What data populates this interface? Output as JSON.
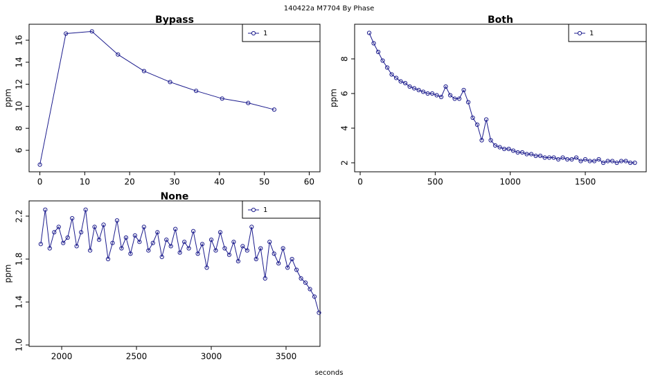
{
  "title": "140422a    M7704   By Phase",
  "xlabel": "seconds",
  "chart_data": [
    {
      "type": "line",
      "title": "Bypass",
      "ylabel": "ppm",
      "legend": "topright",
      "xlim": [
        -2.4,
        62.4
      ],
      "xticks": [
        0,
        10,
        20,
        30,
        40,
        50,
        60
      ],
      "ylim": [
        4.05,
        17.45
      ],
      "yticks": [
        6,
        8,
        10,
        12,
        14,
        16
      ],
      "x": [
        0,
        5.8,
        11.6,
        17.4,
        23.2,
        29,
        34.8,
        40.6,
        46.4,
        52.2
      ],
      "series": [
        {
          "name": "1",
          "color": "#1a1a8c",
          "values": [
            4.7,
            16.6,
            16.8,
            14.7,
            13.2,
            12.2,
            11.4,
            10.7,
            10.3,
            9.7
          ]
        }
      ]
    },
    {
      "type": "line",
      "title": "Both",
      "ylabel": "ppm",
      "legend": "topright",
      "xlim": [
        -37,
        1906
      ],
      "xticks": [
        0,
        500,
        1000,
        1500
      ],
      "ylim": [
        1.48,
        10
      ],
      "yticks": [
        2,
        4,
        6,
        8
      ],
      "x": [
        60,
        90,
        120,
        150,
        180,
        210,
        240,
        270,
        300,
        330,
        360,
        390,
        420,
        450,
        480,
        510,
        540,
        570,
        600,
        630,
        660,
        690,
        720,
        750,
        780,
        810,
        840,
        870,
        900,
        930,
        960,
        990,
        1020,
        1050,
        1080,
        1110,
        1140,
        1170,
        1200,
        1230,
        1260,
        1290,
        1320,
        1350,
        1380,
        1410,
        1440,
        1470,
        1500,
        1530,
        1560,
        1590,
        1620,
        1650,
        1680,
        1710,
        1740,
        1770,
        1800,
        1830
      ],
      "series": [
        {
          "name": "1",
          "color": "#1a1a8c",
          "values": [
            9.5,
            8.9,
            8.4,
            7.9,
            7.5,
            7.1,
            6.9,
            6.7,
            6.6,
            6.4,
            6.3,
            6.2,
            6.1,
            6.0,
            6.0,
            5.9,
            5.8,
            6.4,
            5.9,
            5.7,
            5.7,
            6.2,
            5.5,
            4.6,
            4.2,
            3.3,
            4.5,
            3.3,
            3.0,
            2.9,
            2.8,
            2.8,
            2.7,
            2.6,
            2.6,
            2.5,
            2.5,
            2.4,
            2.4,
            2.3,
            2.3,
            2.3,
            2.2,
            2.3,
            2.2,
            2.2,
            2.3,
            2.1,
            2.2,
            2.1,
            2.1,
            2.2,
            2.0,
            2.1,
            2.1,
            2.0,
            2.1,
            2.1,
            2.0,
            2.0
          ]
        }
      ]
    },
    {
      "type": "line",
      "title": "None",
      "ylabel": "ppm",
      "legend": "topright",
      "xlim": [
        1782,
        3727
      ],
      "xticks": [
        2000,
        2500,
        3000,
        3500
      ],
      "ylim": [
        0.987,
        2.342
      ],
      "yticks": [
        {
          "value": 1,
          "label": "1.0"
        },
        1.4,
        1.8,
        2.2
      ],
      "x": [
        1860,
        1890,
        1920,
        1950,
        1980,
        2010,
        2040,
        2070,
        2100,
        2130,
        2160,
        2190,
        2220,
        2250,
        2280,
        2310,
        2340,
        2370,
        2400,
        2430,
        2460,
        2490,
        2520,
        2550,
        2580,
        2610,
        2640,
        2670,
        2700,
        2730,
        2760,
        2790,
        2820,
        2850,
        2880,
        2910,
        2940,
        2970,
        3000,
        3030,
        3060,
        3090,
        3120,
        3150,
        3180,
        3210,
        3240,
        3270,
        3300,
        3330,
        3360,
        3390,
        3420,
        3450,
        3480,
        3510,
        3540,
        3570,
        3600,
        3630,
        3660,
        3690,
        3720
      ],
      "series": [
        {
          "name": "1",
          "color": "#1a1a8c",
          "values": [
            1.94,
            2.26,
            1.9,
            2.05,
            2.1,
            1.95,
            2.0,
            2.18,
            1.92,
            2.05,
            2.26,
            1.88,
            2.1,
            1.98,
            2.12,
            1.8,
            1.95,
            2.16,
            1.9,
            2.0,
            1.85,
            2.02,
            1.96,
            2.1,
            1.88,
            1.95,
            2.05,
            1.82,
            1.98,
            1.92,
            2.08,
            1.86,
            1.96,
            1.9,
            2.06,
            1.85,
            1.94,
            1.72,
            1.98,
            1.88,
            2.05,
            1.9,
            1.84,
            1.96,
            1.78,
            1.92,
            1.88,
            2.1,
            1.8,
            1.9,
            1.62,
            1.96,
            1.85,
            1.76,
            1.9,
            1.72,
            1.8,
            1.7,
            1.62,
            1.58,
            1.52,
            1.45,
            1.3
          ]
        }
      ]
    }
  ]
}
